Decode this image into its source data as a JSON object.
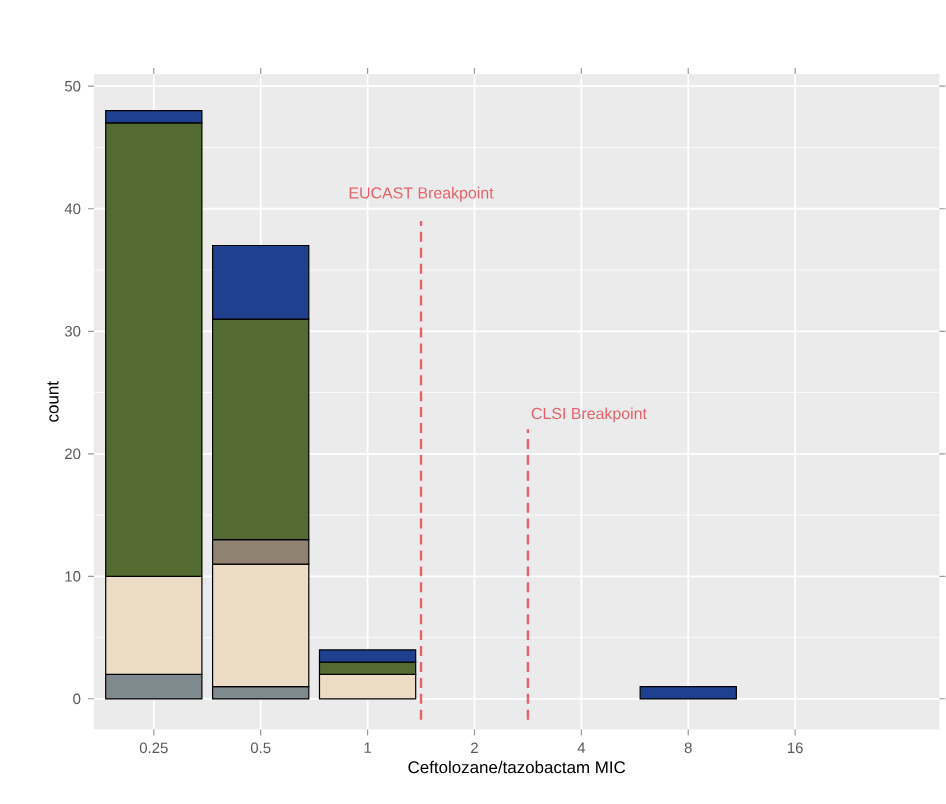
{
  "chart_data": {
    "type": "bar",
    "stacked": true,
    "xlabel": "Ceftolozane/tazobactam MIC",
    "ylabel": "count",
    "categories": [
      "0.25",
      "0.5",
      "1",
      "2",
      "4",
      "8",
      "16"
    ],
    "series": [
      {
        "color": "#7f8a8e",
        "values": [
          2,
          1,
          0,
          0,
          0,
          0,
          0
        ]
      },
      {
        "color": "#ecdcc6",
        "values": [
          8,
          10,
          2,
          0,
          0,
          0,
          0
        ]
      },
      {
        "color": "#8f8270",
        "values": [
          0,
          2,
          0,
          0,
          0,
          0,
          0
        ]
      },
      {
        "color": "#536b30",
        "values": [
          37,
          18,
          1,
          0,
          0,
          0,
          0
        ]
      },
      {
        "color": "#1f3f8f",
        "values": [
          1,
          6,
          1,
          0,
          0,
          1,
          0
        ]
      }
    ],
    "ylim": [
      -2.5,
      51
    ],
    "yticks": [
      0,
      10,
      20,
      30,
      40,
      50
    ],
    "grid": true,
    "annotations": [
      "EUCAST Breakpoint",
      "CLSI Breakpoint"
    ]
  }
}
